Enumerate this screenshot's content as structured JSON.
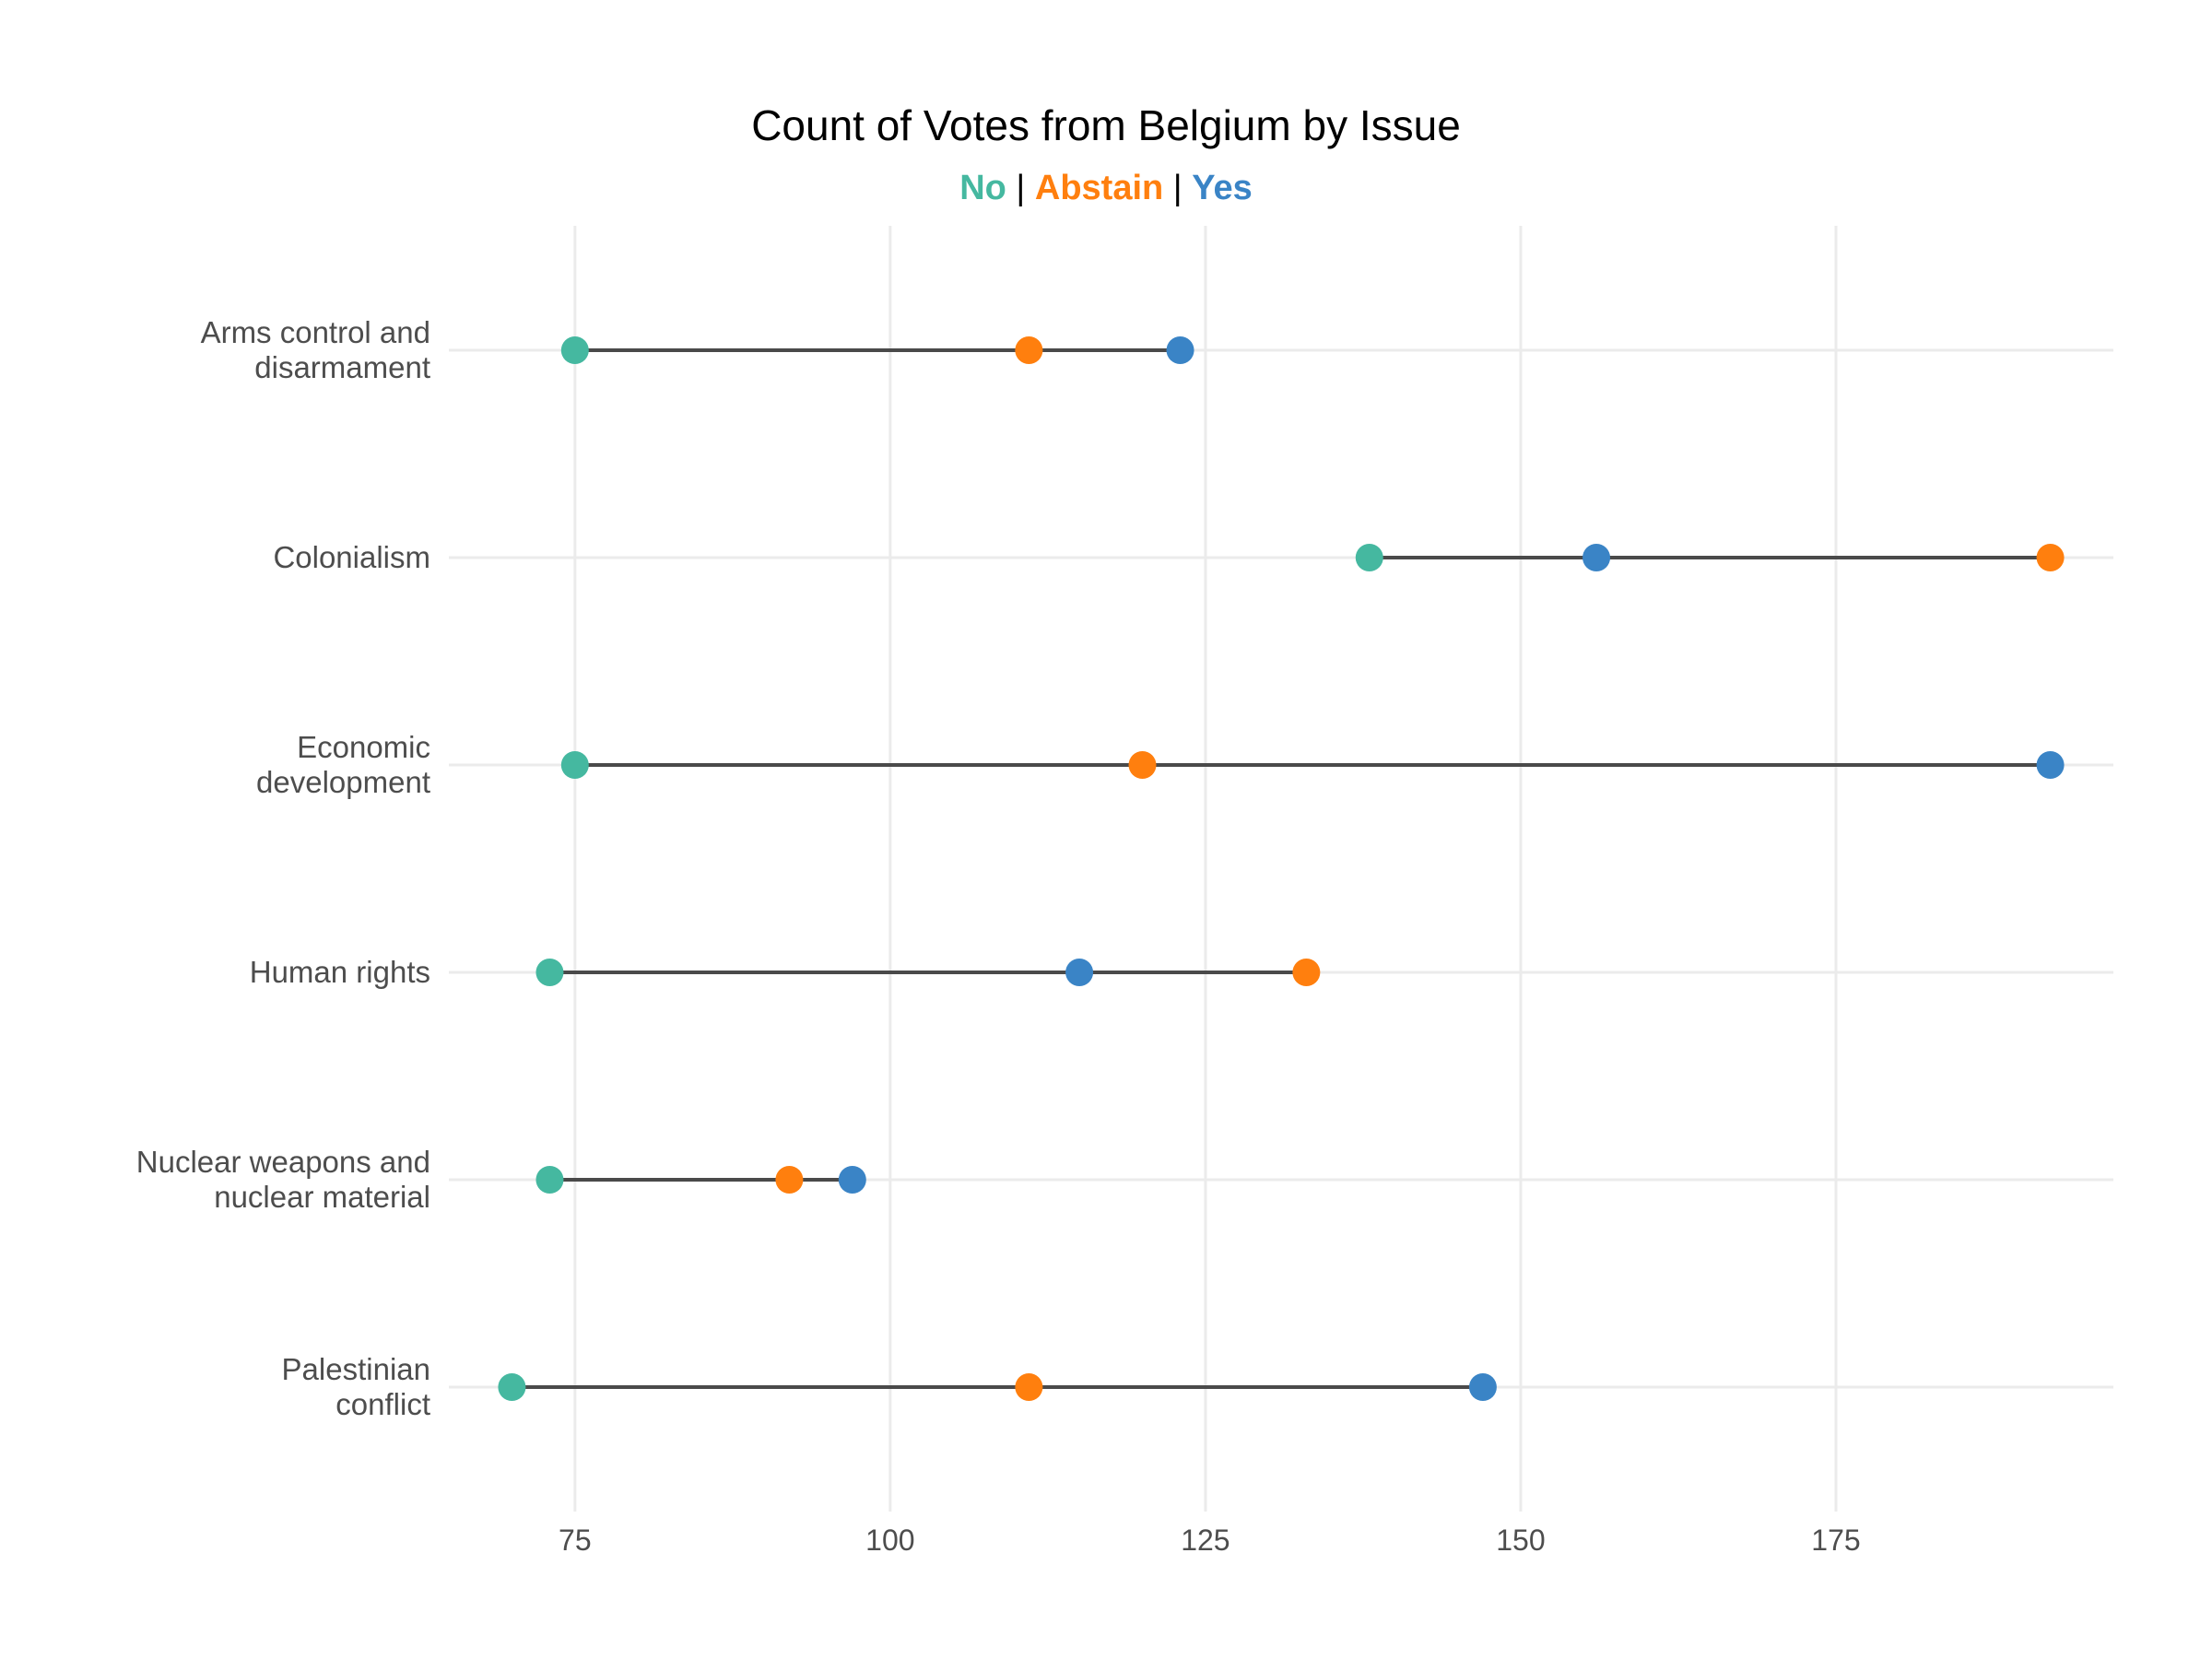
{
  "chart_data": {
    "type": "dumbbell",
    "title": "Count of Votes from Belgium by Issue",
    "subtitle_legend": [
      {
        "label": "No",
        "color": "#45b8a0"
      },
      {
        "label": "Abstain",
        "color": "#ff7f0e"
      },
      {
        "label": "Yes",
        "color": "#3a84c6"
      }
    ],
    "separator": "|",
    "xlabel": "",
    "ylabel": "",
    "xlim": [
      65,
      197
    ],
    "xticks": [
      75,
      100,
      125,
      150,
      175
    ],
    "grid": true,
    "categories": [
      [
        "Arms control and",
        "disarmament"
      ],
      [
        "Colonialism"
      ],
      [
        "Economic",
        "development"
      ],
      [
        "Human rights"
      ],
      [
        "Nuclear weapons and",
        "nuclear material"
      ],
      [
        "Palestinian",
        "conflict"
      ]
    ],
    "series": [
      {
        "name": "No",
        "color": "#45b8a0",
        "values": [
          75,
          138,
          75,
          73,
          73,
          70
        ]
      },
      {
        "name": "Abstain",
        "color": "#ff7f0e",
        "values": [
          111,
          192,
          120,
          133,
          92,
          111
        ]
      },
      {
        "name": "Yes",
        "color": "#3a84c6",
        "values": [
          123,
          156,
          192,
          115,
          97,
          147
        ]
      }
    ]
  }
}
